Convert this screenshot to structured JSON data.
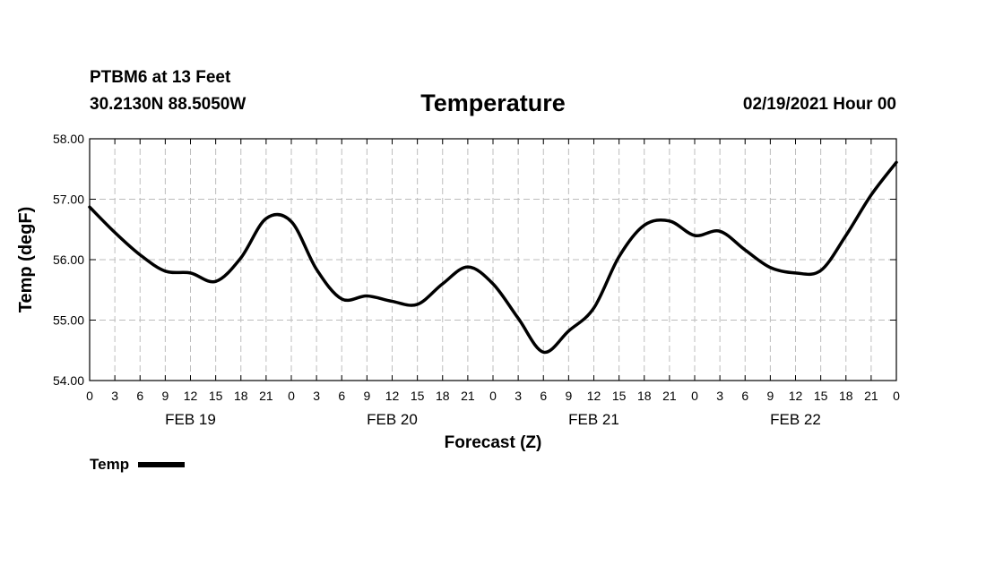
{
  "header": {
    "station": "PTBM6 at 13 Feet",
    "location": "30.2130N 88.5050W",
    "title": "Temperature",
    "timestamp": "02/19/2021 Hour 00"
  },
  "legend": {
    "label": "Temp"
  },
  "chart_data": {
    "type": "line",
    "title": "Temperature",
    "xlabel": "Forecast (Z)",
    "ylabel": "Temp (degF)",
    "ylim": [
      54.0,
      58.0
    ],
    "yticks": [
      "54.00",
      "55.00",
      "56.00",
      "57.00",
      "58.00"
    ],
    "xlim_hours": [
      0,
      96
    ],
    "xtick_labels": [
      "0",
      "3",
      "6",
      "9",
      "12",
      "15",
      "18",
      "21",
      "0",
      "3",
      "6",
      "9",
      "12",
      "15",
      "18",
      "21",
      "0",
      "3",
      "6",
      "9",
      "12",
      "15",
      "18",
      "21",
      "0",
      "3",
      "6",
      "9",
      "12",
      "15",
      "18",
      "21",
      "0"
    ],
    "date_labels": [
      {
        "label": "FEB 19",
        "hour": 12
      },
      {
        "label": "FEB 20",
        "hour": 36
      },
      {
        "label": "FEB 21",
        "hour": 60
      },
      {
        "label": "FEB 22",
        "hour": 84
      }
    ],
    "grid": true,
    "legend_position": "bottom-left",
    "series": [
      {
        "name": "Temp",
        "color": "#000000",
        "x": [
          0,
          3,
          6,
          9,
          12,
          15,
          18,
          21,
          24,
          27,
          30,
          33,
          36,
          39,
          42,
          45,
          48,
          51,
          54,
          57,
          60,
          63,
          66,
          69,
          72,
          75,
          78,
          81,
          84,
          87,
          90,
          93,
          96
        ],
        "y": [
          56.87,
          56.45,
          56.08,
          55.81,
          55.78,
          55.64,
          56.03,
          56.68,
          56.63,
          55.84,
          55.35,
          55.4,
          55.31,
          55.26,
          55.6,
          55.88,
          55.6,
          55.03,
          54.47,
          54.82,
          55.2,
          56.05,
          56.57,
          56.64,
          56.4,
          56.47,
          56.16,
          55.87,
          55.78,
          55.82,
          56.4,
          57.07,
          57.61
        ]
      }
    ]
  }
}
